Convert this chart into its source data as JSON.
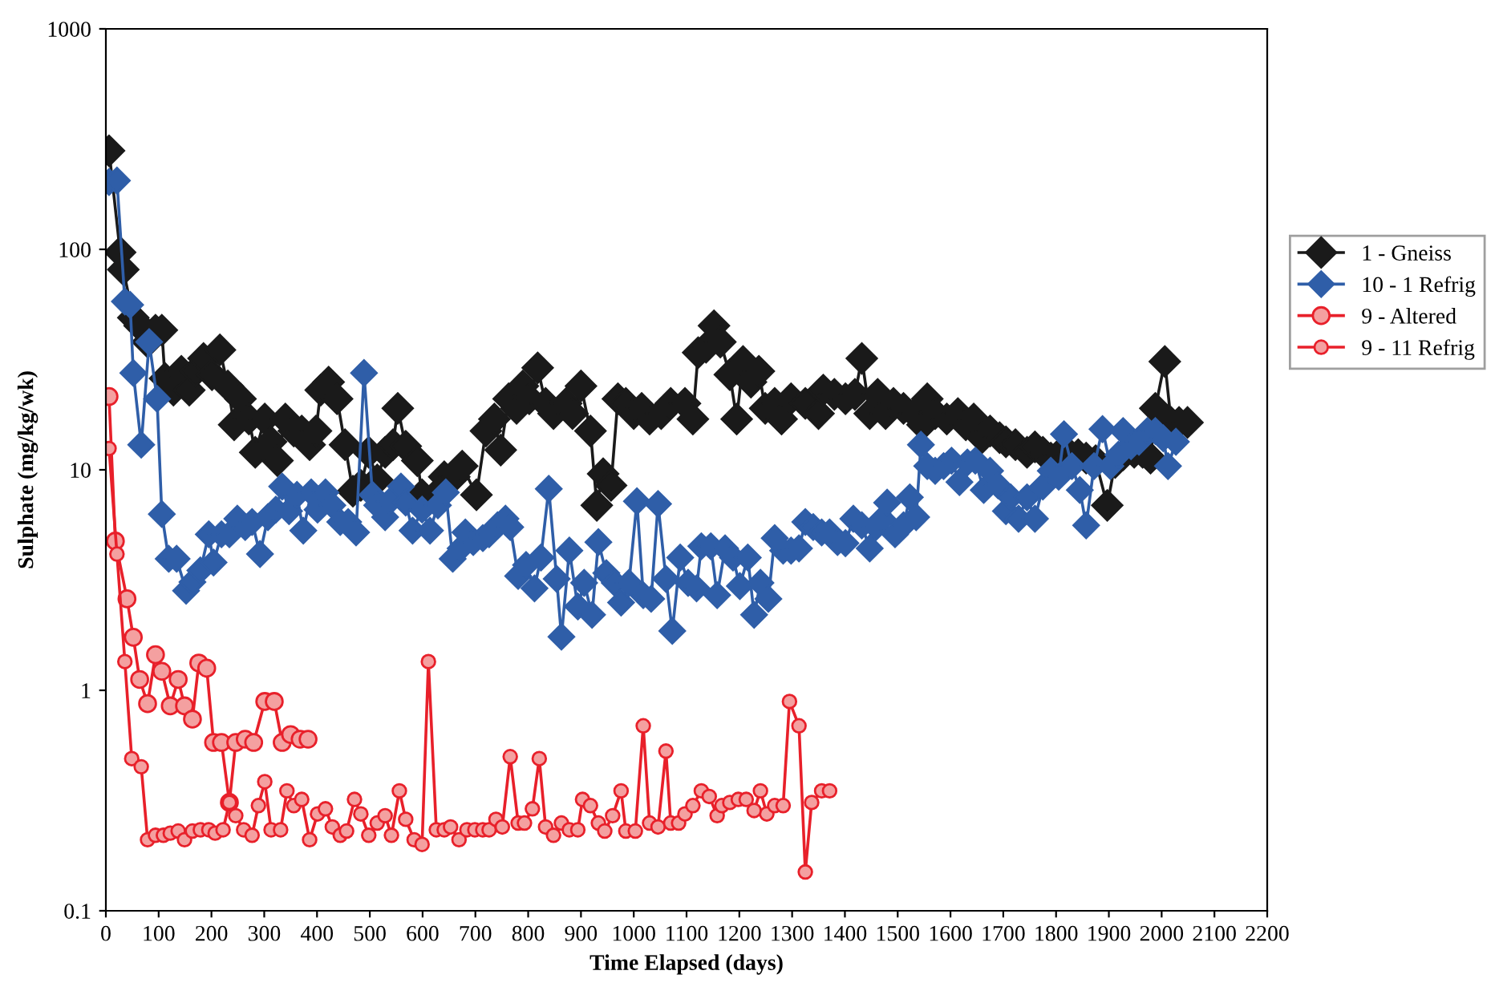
{
  "chart_data": {
    "type": "line",
    "xlabel": "Time Elapsed (days)",
    "ylabel": "Sulphate (mg/kg/wk)",
    "log": "y",
    "xlim": [
      0,
      2200
    ],
    "xticks": [
      0,
      100,
      200,
      300,
      400,
      500,
      600,
      700,
      800,
      900,
      1000,
      1100,
      1200,
      1300,
      1400,
      1500,
      1600,
      1700,
      1800,
      1900,
      2000,
      2100,
      2200
    ],
    "ylim": [
      0.1,
      1000
    ],
    "yticks": [
      {
        "value": 0.1,
        "label": "0.1"
      },
      1,
      10,
      100,
      1000
    ],
    "grid": false,
    "legend": "right",
    "line_style": "solid",
    "series": [
      {
        "name": "1 - Gneiss",
        "color": "#1a1a1a",
        "marker": "diamond",
        "x": [
          6,
          27,
          33,
          52,
          64,
          79,
          94,
          106,
          112,
          128,
          143,
          158,
          170,
          185,
          201,
          216,
          231,
          243,
          255,
          271,
          283,
          301,
          313,
          325,
          340,
          356,
          371,
          386,
          398,
          407,
          422,
          438,
          453,
          468,
          483,
          498,
          514,
          529,
          544,
          553,
          568,
          590,
          599,
          620,
          641,
          660,
          675,
          702,
          720,
          736,
          748,
          763,
          778,
          790,
          802,
          818,
          833,
          848,
          872,
          884,
          900,
          918,
          930,
          942,
          957,
          970,
          985,
          1000,
          1015,
          1030,
          1052,
          1070,
          1097,
          1112,
          1122,
          1137,
          1152,
          1164,
          1182,
          1195,
          1207,
          1222,
          1237,
          1249,
          1267,
          1280,
          1298,
          1325,
          1350,
          1359,
          1380,
          1401,
          1419,
          1432,
          1447,
          1462,
          1477,
          1492,
          1511,
          1532,
          1547,
          1556,
          1571,
          1593,
          1614,
          1629,
          1644,
          1660,
          1675,
          1693,
          1705,
          1723,
          1745,
          1760,
          1775,
          1790,
          1805,
          1827,
          1842,
          1857,
          1875,
          1897,
          1912,
          1927,
          1948,
          1964,
          1979,
          1988,
          2006,
          2018,
          2033,
          2049
        ],
        "values": [
          280,
          97,
          81,
          49,
          45,
          38,
          43,
          43,
          26,
          23,
          28,
          23,
          28,
          32,
          27,
          35,
          24,
          16,
          21,
          17,
          12,
          17,
          13.4,
          11,
          17,
          15,
          15,
          13,
          15,
          23,
          25,
          21,
          13,
          8,
          8.5,
          12,
          9,
          12,
          13,
          19,
          12.8,
          11,
          7.7,
          7.5,
          9.3,
          9.3,
          10.4,
          7.7,
          15,
          17,
          12.3,
          21,
          19,
          24,
          21,
          29,
          20,
          18,
          20,
          18,
          24,
          15,
          6.9,
          9.6,
          8.5,
          21,
          20,
          18,
          19,
          17,
          18,
          20,
          20,
          17,
          34,
          36,
          45,
          38,
          27,
          17,
          31,
          25,
          28,
          19,
          20,
          17,
          21,
          20,
          18,
          23,
          22,
          21,
          22,
          32,
          18,
          22,
          18,
          20,
          19,
          18,
          16,
          21,
          18,
          17,
          18,
          16,
          17,
          14,
          15,
          14,
          13.4,
          13,
          12,
          12.7,
          12,
          11.3,
          11.7,
          11.7,
          11.7,
          11.3,
          11,
          6.9,
          10.8,
          11.7,
          12,
          12,
          11.3,
          19,
          31,
          16.4,
          16.4,
          16.4
        ]
      },
      {
        "name": "10 - 1 Refrig",
        "color": "#2f5ea8",
        "marker": "diamond",
        "x": [
          6,
          21,
          36,
          46,
          52,
          67,
          82,
          97,
          106,
          119,
          134,
          152,
          164,
          179,
          195,
          204,
          219,
          234,
          249,
          264,
          277,
          292,
          307,
          322,
          334,
          347,
          362,
          374,
          389,
          401,
          416,
          429,
          444,
          459,
          474,
          489,
          505,
          514,
          529,
          538,
          559,
          568,
          581,
          599,
          614,
          629,
          644,
          657,
          672,
          681,
          696,
          714,
          726,
          742,
          757,
          766,
          781,
          796,
          812,
          824,
          839,
          854,
          863,
          878,
          894,
          906,
          921,
          933,
          948,
          964,
          976,
          991,
          1006,
          1018,
          1033,
          1046,
          1061,
          1073,
          1088,
          1103,
          1119,
          1128,
          1146,
          1158,
          1173,
          1188,
          1201,
          1216,
          1228,
          1240,
          1255,
          1267,
          1283,
          1298,
          1313,
          1325,
          1340,
          1356,
          1371,
          1386,
          1401,
          1416,
          1432,
          1447,
          1459,
          1471,
          1480,
          1495,
          1511,
          1523,
          1535,
          1544,
          1556,
          1571,
          1587,
          1602,
          1617,
          1632,
          1647,
          1663,
          1675,
          1690,
          1705,
          1714,
          1729,
          1745,
          1760,
          1775,
          1790,
          1805,
          1815,
          1830,
          1845,
          1857,
          1872,
          1888,
          1903,
          1918,
          1927,
          1942,
          1957,
          1973,
          1988,
          2003,
          2012,
          2027
        ],
        "values": [
          202,
          205,
          58,
          56,
          27.5,
          13,
          38,
          21,
          6.3,
          3.95,
          3.95,
          2.83,
          3.1,
          3.5,
          5.1,
          3.8,
          5.1,
          5.1,
          6.0,
          5.5,
          5.8,
          4.15,
          6.1,
          6.6,
          8.4,
          6.5,
          7.7,
          5.3,
          7.9,
          6.6,
          7.9,
          6.9,
          5.8,
          5.8,
          5.2,
          27.5,
          7.7,
          6.9,
          6.1,
          7.2,
          8.4,
          7.1,
          5.3,
          6.6,
          5.3,
          6.9,
          7.9,
          3.95,
          4.4,
          5.2,
          4.7,
          4.9,
          5.1,
          5.6,
          6.0,
          5.5,
          3.3,
          3.7,
          2.9,
          4.0,
          8.2,
          3.2,
          1.75,
          4.3,
          2.4,
          3.07,
          2.2,
          4.7,
          3.4,
          3.07,
          2.5,
          3.07,
          7.2,
          2.7,
          2.6,
          7.0,
          3.2,
          1.86,
          4.0,
          3.07,
          2.9,
          4.5,
          4.5,
          2.7,
          4.4,
          4.0,
          2.97,
          4.0,
          2.2,
          3.07,
          2.6,
          4.9,
          4.3,
          4.3,
          4.4,
          5.8,
          5.5,
          5.2,
          5.2,
          4.7,
          4.65,
          6.0,
          5.6,
          4.4,
          5.5,
          6.0,
          7.1,
          5.1,
          5.6,
          7.5,
          6.1,
          13,
          10.4,
          9.9,
          10.4,
          11,
          8.8,
          10.8,
          11,
          8.1,
          9.9,
          8.5,
          6.5,
          7.5,
          6.0,
          7.5,
          6.0,
          8.4,
          9.9,
          9.3,
          14.5,
          10.4,
          8.1,
          5.6,
          10.4,
          15.3,
          10.4,
          11.7,
          15,
          12.8,
          13.4,
          15,
          15,
          13.9,
          10.4,
          13.4
        ]
      },
      {
        "name": "9 - Altered",
        "color": "#e8202a",
        "marker": "circle",
        "x": [
          6,
          18,
          40,
          52,
          64,
          79,
          94,
          106,
          122,
          137,
          149,
          164,
          176,
          191,
          204,
          219,
          234,
          246,
          264,
          280,
          301,
          319,
          334,
          350,
          368,
          383
        ],
        "values": [
          21.5,
          4.75,
          2.6,
          1.74,
          1.12,
          0.87,
          1.45,
          1.22,
          0.85,
          1.12,
          0.85,
          0.74,
          1.33,
          1.26,
          0.58,
          0.58,
          0.31,
          0.58,
          0.6,
          0.58,
          0.89,
          0.89,
          0.58,
          0.63,
          0.6,
          0.6
        ]
      },
      {
        "name": "9 - 11 Refrig",
        "color": "#e8202a",
        "marker": "circle",
        "x": [
          6,
          21,
          36,
          49,
          67,
          79,
          94,
          109,
          122,
          137,
          149,
          164,
          179,
          195,
          207,
          222,
          234,
          246,
          261,
          277,
          289,
          301,
          313,
          331,
          343,
          356,
          371,
          386,
          401,
          416,
          429,
          444,
          456,
          471,
          483,
          498,
          514,
          529,
          541,
          556,
          568,
          584,
          599,
          611,
          626,
          641,
          653,
          669,
          684,
          699,
          714,
          726,
          739,
          751,
          766,
          781,
          793,
          808,
          821,
          833,
          848,
          863,
          878,
          894,
          903,
          918,
          933,
          945,
          960,
          976,
          985,
          1003,
          1018,
          1030,
          1046,
          1061,
          1070,
          1085,
          1097,
          1112,
          1128,
          1143,
          1158,
          1167,
          1182,
          1198,
          1213,
          1228,
          1240,
          1252,
          1267,
          1283,
          1295,
          1313,
          1325,
          1337,
          1356,
          1371
        ],
        "values": [
          12.5,
          4.15,
          1.35,
          0.49,
          0.45,
          0.21,
          0.22,
          0.22,
          0.225,
          0.23,
          0.21,
          0.23,
          0.233,
          0.233,
          0.225,
          0.233,
          0.31,
          0.27,
          0.233,
          0.22,
          0.3,
          0.385,
          0.233,
          0.233,
          0.35,
          0.3,
          0.32,
          0.21,
          0.275,
          0.29,
          0.24,
          0.22,
          0.23,
          0.32,
          0.275,
          0.22,
          0.25,
          0.27,
          0.22,
          0.35,
          0.26,
          0.21,
          0.2,
          1.35,
          0.233,
          0.233,
          0.24,
          0.21,
          0.233,
          0.233,
          0.233,
          0.233,
          0.26,
          0.24,
          0.5,
          0.25,
          0.25,
          0.29,
          0.49,
          0.24,
          0.22,
          0.25,
          0.233,
          0.233,
          0.32,
          0.3,
          0.25,
          0.23,
          0.27,
          0.35,
          0.23,
          0.23,
          0.69,
          0.25,
          0.24,
          0.53,
          0.25,
          0.25,
          0.275,
          0.3,
          0.35,
          0.33,
          0.27,
          0.3,
          0.31,
          0.32,
          0.32,
          0.285,
          0.35,
          0.275,
          0.3,
          0.3,
          0.89,
          0.69,
          0.15,
          0.31,
          0.35,
          0.35
        ]
      }
    ]
  }
}
